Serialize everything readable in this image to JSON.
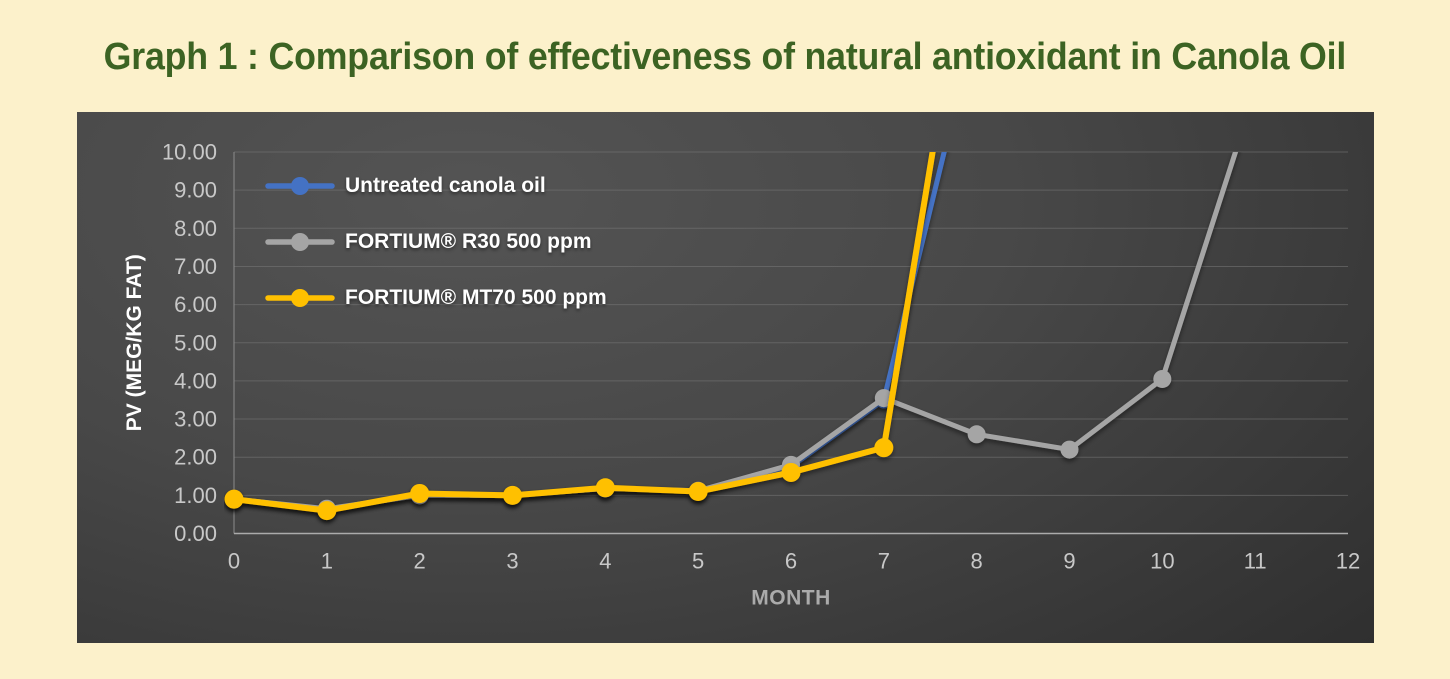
{
  "title": "Graph 1 : Comparison of effectiveness of natural antioxidant in Canola Oil",
  "colors": {
    "page_bg": "#FCF1CB",
    "title_green": "#3C6323",
    "chart_bg_center": "#545454",
    "chart_bg_edge": "#1E1E1E",
    "gridline": "#787878",
    "axis_line": "#ABABAB",
    "tick_label": "#C8C8C8",
    "y_axis_title": "#FFFFFF",
    "x_axis_title": "#ABABAB",
    "legend_text": "#FFFFFF",
    "series_blue": "#4472C4",
    "series_gray": "#A5A5A5",
    "series_yellow": "#FFC000"
  },
  "chart_data": {
    "type": "line",
    "title": "",
    "xlabel": "MONTH",
    "ylabel": "PV (MEG/KG FAT)",
    "xlim": [
      0,
      12
    ],
    "ylim": [
      0,
      10
    ],
    "x_ticks": [
      "0",
      "1",
      "2",
      "3",
      "4",
      "5",
      "6",
      "7",
      "8",
      "9",
      "10",
      "11",
      "12"
    ],
    "y_ticks": [
      "0.00",
      "1.00",
      "2.00",
      "3.00",
      "4.00",
      "5.00",
      "6.00",
      "7.00",
      "8.00",
      "9.00",
      "10.00"
    ],
    "grid": "horizontal-only",
    "legend_position": "inside-top-left",
    "series": [
      {
        "name": "Untreated canola oil",
        "color": "#4472C4",
        "x": [
          0,
          1,
          2,
          3,
          4,
          5,
          6,
          7,
          8
        ],
        "values": [
          0.9,
          0.6,
          1.05,
          1.0,
          1.2,
          1.1,
          1.75,
          3.5,
          13.5
        ],
        "note": "final point rises off scale above 10.00 (clipped at plot top; value estimated)"
      },
      {
        "name": "FORTIUM® R30 500 ppm",
        "color": "#A5A5A5",
        "x": [
          0,
          1,
          2,
          3,
          4,
          5,
          6,
          7,
          8,
          9,
          10,
          11
        ],
        "values": [
          0.9,
          0.65,
          1.0,
          1.0,
          1.18,
          1.12,
          1.8,
          3.55,
          2.6,
          2.2,
          4.05,
          11.6
        ],
        "note": "final point rises off scale above 10.00 (clipped at plot top; value estimated)"
      },
      {
        "name": "FORTIUM® MT70 500 ppm",
        "color": "#FFC000",
        "x": [
          0,
          1,
          2,
          3,
          4,
          5,
          6,
          7,
          8
        ],
        "values": [
          0.9,
          0.6,
          1.05,
          1.0,
          1.2,
          1.1,
          1.6,
          2.25,
          17
        ],
        "note": "final point rises off scale above 10.00 (clipped at plot top; value estimated)"
      }
    ]
  }
}
